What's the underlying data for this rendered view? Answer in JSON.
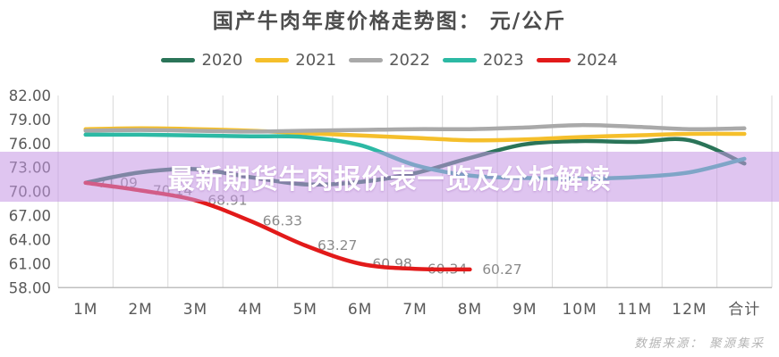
{
  "title": "国产牛肉年度价格走势图： 元/公斤",
  "banner": {
    "text": "最新期货牛肉报价表一览及分析解读",
    "bg": "#c595e3",
    "text_color": "#ffffff"
  },
  "source": "数据来源： 聚源集采",
  "axis_colors": {
    "grid": "#d9d9d9",
    "axis_line": "#bfbfbf",
    "tick_text": "#595959",
    "data_label_text": "#8a8a8a"
  },
  "chart_data": {
    "type": "line",
    "title": "国产牛肉年度价格走势图： 元/公斤",
    "categories": [
      "1M",
      "2M",
      "3M",
      "4M",
      "5M",
      "6M",
      "7M",
      "8M",
      "9M",
      "10M",
      "11M",
      "12M",
      "合计"
    ],
    "xlabel": "",
    "ylabel": "元/公斤",
    "ylim": [
      58,
      82
    ],
    "ytick_step": 3,
    "grid": "vertical-only",
    "legend_position": "top",
    "line_style": "smooth",
    "series": [
      {
        "name": "2020",
        "color": "#2a7458",
        "values": [
          71.1,
          72.4,
          72.8,
          71.8,
          70.9,
          71.2,
          72.3,
          74.2,
          75.9,
          76.3,
          76.2,
          76.4,
          73.5
        ],
        "labeled": false
      },
      {
        "name": "2021",
        "color": "#f5bf2b",
        "values": [
          77.8,
          77.9,
          77.8,
          77.6,
          77.3,
          77.0,
          76.7,
          76.4,
          76.5,
          76.8,
          77.0,
          77.2,
          77.2
        ],
        "labeled": false
      },
      {
        "name": "2022",
        "color": "#a9a9a9",
        "values": [
          77.6,
          77.7,
          77.6,
          77.5,
          77.6,
          77.7,
          77.8,
          77.8,
          78.0,
          78.3,
          78.1,
          77.8,
          77.9
        ],
        "labeled": false
      },
      {
        "name": "2023",
        "color": "#2cb9a4",
        "values": [
          77.1,
          77.1,
          77.0,
          76.9,
          76.8,
          75.8,
          73.3,
          72.0,
          71.7,
          71.6,
          71.8,
          72.4,
          74.1
        ],
        "labeled": false
      },
      {
        "name": "2024",
        "color": "#e21a1a",
        "values": [
          71.09,
          70.14,
          68.91,
          66.33,
          63.27,
          60.98,
          60.34,
          60.27
        ],
        "labeled": true,
        "data_labels": [
          "71.09",
          "70.14",
          "68.91",
          "66.33",
          "63.27",
          "60.98",
          "60.34",
          "60.27"
        ]
      }
    ]
  }
}
